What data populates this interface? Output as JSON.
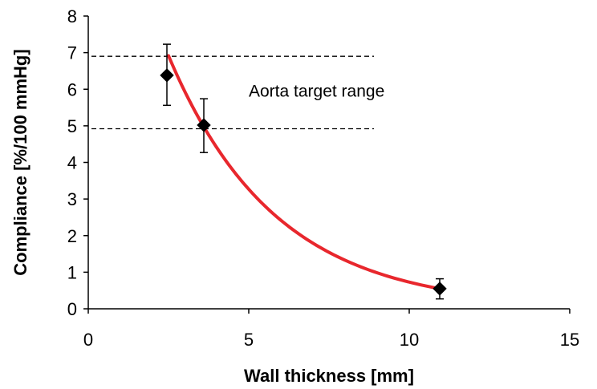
{
  "chart_data": {
    "type": "scatter",
    "title": "",
    "xlabel": "Wall thickness [mm]",
    "ylabel": "Compliance [%/100 mmHg]",
    "xlim": [
      0,
      15
    ],
    "ylim": [
      0,
      8
    ],
    "x_ticks": [
      "0",
      "5",
      "10",
      "15"
    ],
    "y_ticks": [
      "0",
      "1",
      "2",
      "3",
      "4",
      "5",
      "6",
      "7",
      "8"
    ],
    "grid": false,
    "legend": "none",
    "series": [
      {
        "marker": "diamond",
        "color": "#000000",
        "x": [
          2.45,
          3.6,
          10.95
        ],
        "y": [
          6.38,
          5.02,
          0.55
        ],
        "error_low": [
          0.82,
          0.75,
          0.28
        ],
        "error_high": [
          0.85,
          0.72,
          0.27
        ]
      }
    ],
    "fit_curve": {
      "color": "#e8272d",
      "x_range": [
        2.5,
        10.9
      ],
      "model": "exponential",
      "a": 14.64,
      "b": 0.3
    },
    "reference_lines": [
      {
        "y": 6.9,
        "x_range": [
          0,
          8.9
        ],
        "style": "dashed",
        "color": "#000000"
      },
      {
        "y": 4.92,
        "x_range": [
          0,
          8.9
        ],
        "style": "dashed",
        "color": "#000000"
      }
    ],
    "annotation": {
      "text": "Aorta target range",
      "x": 5.0,
      "y": 5.95
    }
  }
}
